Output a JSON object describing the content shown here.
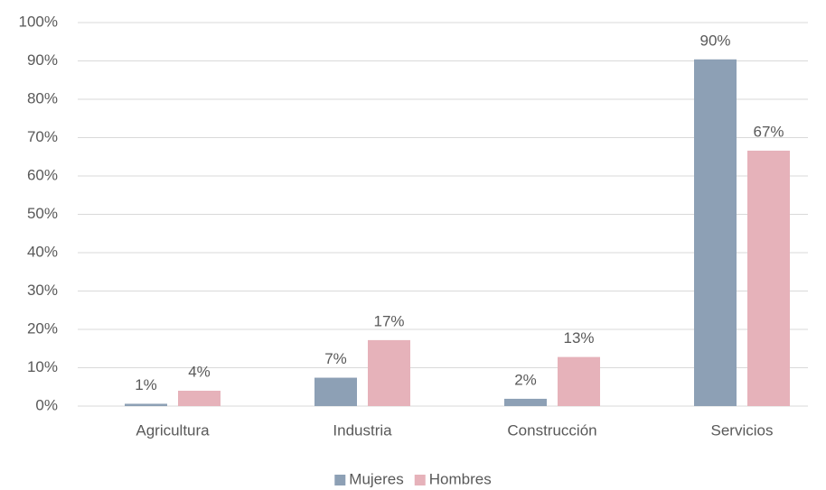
{
  "chart_data": {
    "type": "bar",
    "categories": [
      "Agricultura",
      "Industria",
      "Construcción",
      "Servicios"
    ],
    "series": [
      {
        "name": "Mujeres",
        "color": "#8da0b5",
        "values": [
          0.6,
          7.4,
          1.9,
          90.4
        ],
        "value_labels": [
          "1%",
          "7%",
          "2%",
          "90%"
        ]
      },
      {
        "name": "Hombres",
        "color": "#e6b2ba",
        "values": [
          4,
          17.2,
          12.8,
          66.6
        ],
        "value_labels": [
          "4%",
          "17%",
          "13%",
          "67%"
        ]
      }
    ],
    "ylim": [
      0,
      100
    ],
    "yticks": [
      {
        "value": 0,
        "label": "0%"
      },
      {
        "value": 10,
        "label": "10%"
      },
      {
        "value": 20,
        "label": "20%"
      },
      {
        "value": 30,
        "label": "30%"
      },
      {
        "value": 40,
        "label": "40%"
      },
      {
        "value": 50,
        "label": "50%"
      },
      {
        "value": 60,
        "label": "60%"
      },
      {
        "value": 70,
        "label": "70%"
      },
      {
        "value": 80,
        "label": "80%"
      },
      {
        "value": 90,
        "label": "90%"
      },
      {
        "value": 100,
        "label": "100%"
      }
    ],
    "grid": true,
    "legend": "bottom"
  }
}
